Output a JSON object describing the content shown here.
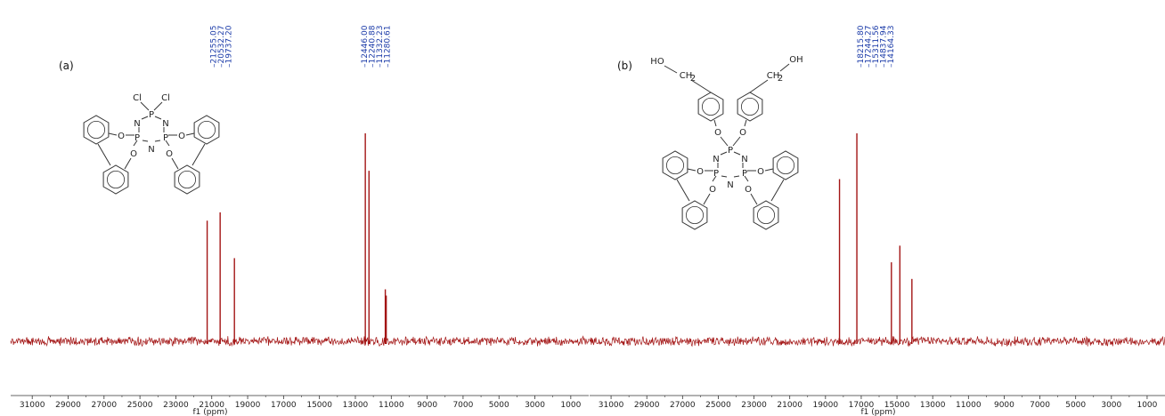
{
  "chart_data": [
    {
      "type": "line",
      "panel_label": "(a)",
      "xlabel": "f1 (ppm)",
      "ticks": [
        31000,
        29000,
        27000,
        25000,
        23000,
        21000,
        19000,
        17000,
        15000,
        13000,
        11000,
        9000,
        7000,
        5000,
        3000,
        1000
      ],
      "xlim": [
        32200,
        0
      ],
      "peak_labels": [
        "21255.05",
        "20532.27",
        "19737.20",
        "12446.00",
        "12240.88",
        "11332.23",
        "11280.61"
      ],
      "peaks": [
        {
          "x": 21255.05,
          "height": 0.58
        },
        {
          "x": 20532.27,
          "height": 0.62
        },
        {
          "x": 19737.2,
          "height": 0.4
        },
        {
          "x": 12446.0,
          "height": 1.0
        },
        {
          "x": 12240.88,
          "height": 0.82
        },
        {
          "x": 11332.23,
          "height": 0.25
        },
        {
          "x": 11280.61,
          "height": 0.22
        }
      ],
      "series": [
        {
          "color": "#a31515"
        }
      ],
      "structure": {
        "labels": [
          "Cl",
          "Cl",
          "P",
          "N",
          "N",
          "P",
          "P",
          "N",
          "O",
          "O",
          "O",
          "O"
        ]
      }
    },
    {
      "type": "line",
      "panel_label": "(b)",
      "xlabel": "f1 (ppm)",
      "ticks": [
        31000,
        29000,
        27000,
        25000,
        23000,
        21000,
        19000,
        17000,
        15000,
        13000,
        11000,
        9000,
        7000,
        5000,
        3000,
        1000
      ],
      "xlim": [
        32200,
        0
      ],
      "peak_labels": [
        "18215.80",
        "17244.27",
        "15311.56",
        "14837.94",
        "14164.33"
      ],
      "peaks": [
        {
          "x": 18215.8,
          "height": 0.78
        },
        {
          "x": 17244.27,
          "height": 1.0
        },
        {
          "x": 15311.56,
          "height": 0.38
        },
        {
          "x": 14837.94,
          "height": 0.46
        },
        {
          "x": 14164.33,
          "height": 0.3
        }
      ],
      "series": [
        {
          "color": "#a31515"
        }
      ],
      "structure": {
        "labels": [
          "HO",
          "OH",
          "CH",
          "2",
          "CH",
          "2",
          "O",
          "O",
          "P",
          "N",
          "N",
          "P",
          "P",
          "N",
          "O",
          "O",
          "O",
          "O"
        ]
      }
    }
  ]
}
